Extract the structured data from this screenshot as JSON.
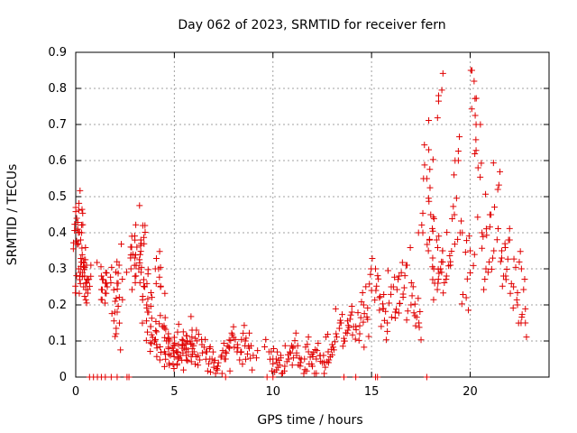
{
  "chart_data": {
    "type": "scatter",
    "title": "Day 062 of 2023, SRMTID for receiver fern",
    "xlabel": "GPS time / hours",
    "ylabel": "SRMTID / TECUs",
    "xlim": [
      0,
      24
    ],
    "ylim": [
      0,
      0.9
    ],
    "xticks": [
      0,
      5,
      10,
      15,
      20
    ],
    "yticks": [
      0,
      0.1,
      0.2,
      0.3,
      0.4,
      0.5,
      0.6,
      0.7,
      0.8,
      0.9
    ],
    "grid": true,
    "marker": "+",
    "series_color": "#e00000",
    "series": [
      {
        "name": "SRMTID",
        "x": [
          0.0,
          0.05,
          0.1,
          0.15,
          0.2,
          0.25,
          0.3,
          0.35,
          0.4,
          0.45,
          0.5,
          0.55,
          0.6,
          1.3,
          1.4,
          1.5,
          1.6,
          2.0,
          2.05,
          2.1,
          2.15,
          2.2,
          2.8,
          2.9,
          3.0,
          3.1,
          3.2,
          3.3,
          3.4,
          3.45,
          3.5,
          3.6,
          3.7,
          3.8,
          3.9,
          4.0,
          4.1,
          4.2,
          4.3,
          4.4,
          4.5,
          4.6,
          4.7,
          4.8,
          4.9,
          5.0,
          5.1,
          5.2,
          5.3,
          5.4,
          5.5,
          5.6,
          5.7,
          5.8,
          5.9,
          6.0,
          6.2,
          6.4,
          6.6,
          6.8,
          7.0,
          7.2,
          7.4,
          7.6,
          7.8,
          8.0,
          8.2,
          8.4,
          8.6,
          8.8,
          9.0,
          9.8,
          10.0,
          10.2,
          10.4,
          10.6,
          10.8,
          11.0,
          11.2,
          11.4,
          11.6,
          11.8,
          12.0,
          12.2,
          12.4,
          12.6,
          12.8,
          13.0,
          13.2,
          13.4,
          13.6,
          13.8,
          14.0,
          14.2,
          14.4,
          14.6,
          14.8,
          15.0,
          15.2,
          15.4,
          15.6,
          15.8,
          16.0,
          16.2,
          16.4,
          16.6,
          16.8,
          17.0,
          17.2,
          17.4,
          17.6,
          17.8,
          17.9,
          18.0,
          18.1,
          18.2,
          18.3,
          18.4,
          18.5,
          18.6,
          18.8,
          19.0,
          19.2,
          19.4,
          19.6,
          19.8,
          20.0,
          20.2,
          20.3,
          20.4,
          20.6,
          20.8,
          21.0,
          21.2,
          21.4,
          21.6,
          21.8,
          22.0,
          22.2,
          22.4,
          22.6,
          22.8
        ],
        "y": [
          0.47,
          0.44,
          0.41,
          0.3,
          0.27,
          0.38,
          0.4,
          0.29,
          0.25,
          0.28,
          0.26,
          0.31,
          0.27,
          0.28,
          0.27,
          0.26,
          0.25,
          0.21,
          0.12,
          0.18,
          0.26,
          0.31,
          0.3,
          0.34,
          0.33,
          0.36,
          0.3,
          0.38,
          0.42,
          0.27,
          0.25,
          0.2,
          0.18,
          0.14,
          0.11,
          0.1,
          0.09,
          0.3,
          0.25,
          0.14,
          0.07,
          0.1,
          0.12,
          0.06,
          0.08,
          0.11,
          0.07,
          0.05,
          0.06,
          0.09,
          0.08,
          0.06,
          0.07,
          0.1,
          0.13,
          0.07,
          0.06,
          0.09,
          0.07,
          0.05,
          0.04,
          0.03,
          0.06,
          0.05,
          0.08,
          0.11,
          0.09,
          0.07,
          0.1,
          0.08,
          0.06,
          0.07,
          0.05,
          0.04,
          0.06,
          0.03,
          0.05,
          0.08,
          0.06,
          0.04,
          0.05,
          0.07,
          0.03,
          0.05,
          0.06,
          0.04,
          0.07,
          0.09,
          0.12,
          0.15,
          0.1,
          0.13,
          0.18,
          0.14,
          0.12,
          0.2,
          0.16,
          0.24,
          0.3,
          0.22,
          0.19,
          0.15,
          0.25,
          0.18,
          0.28,
          0.23,
          0.31,
          0.2,
          0.17,
          0.15,
          0.4,
          0.55,
          0.63,
          0.45,
          0.33,
          0.26,
          0.38,
          0.78,
          0.3,
          0.35,
          0.28,
          0.31,
          0.45,
          0.6,
          0.4,
          0.22,
          0.35,
          0.82,
          0.7,
          0.58,
          0.4,
          0.3,
          0.45,
          0.35,
          0.52,
          0.33,
          0.28,
          0.38,
          0.25,
          0.2,
          0.3,
          0.15
        ]
      }
    ],
    "zero_marks_x": [
      0.7,
      0.9,
      1.1,
      1.3,
      1.5,
      1.8,
      2.1,
      2.6,
      2.7,
      7.6,
      9.7,
      10.0,
      13.6,
      14.2,
      15.2,
      15.3,
      17.8
    ]
  }
}
